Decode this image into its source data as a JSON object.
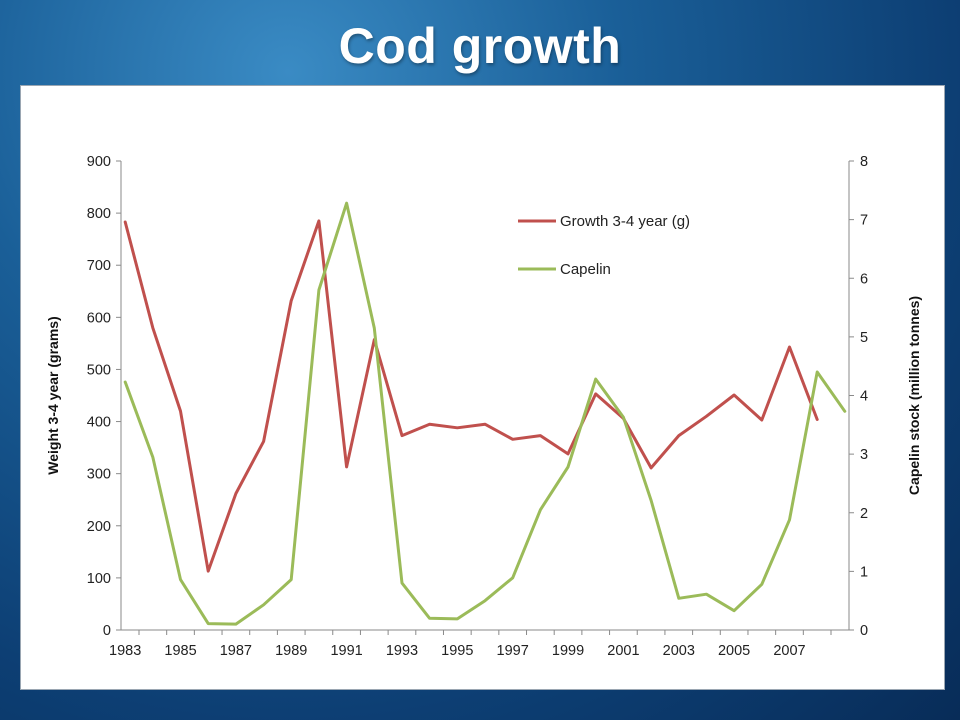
{
  "slide": {
    "title": "Cod growth"
  },
  "chart_data": {
    "type": "line",
    "x": [
      1983,
      1984,
      1985,
      1986,
      1987,
      1988,
      1989,
      1990,
      1991,
      1992,
      1993,
      1994,
      1995,
      1996,
      1997,
      1998,
      1999,
      2000,
      2001,
      2002,
      2003,
      2004,
      2005,
      2006,
      2007,
      2008,
      2009
    ],
    "x_tick_labels": [
      "1983",
      "1985",
      "1987",
      "1989",
      "1991",
      "1993",
      "1995",
      "1997",
      "1999",
      "2001",
      "2003",
      "2005",
      "2007"
    ],
    "ylabel": "Weight 3-4 year (grams)",
    "ylim": [
      0,
      900
    ],
    "y_ticks": [
      "0",
      "100",
      "200",
      "300",
      "400",
      "500",
      "600",
      "700",
      "800",
      "900"
    ],
    "y2label": "Capelin stock (million tonnes)",
    "y2lim": [
      0,
      8
    ],
    "y2_ticks": [
      "0",
      "1",
      "2",
      "3",
      "4",
      "5",
      "6",
      "7",
      "8"
    ],
    "grid": false,
    "legend_position": "top-right",
    "series": [
      {
        "name": "Growth 3-4 year (g)",
        "axis": "left",
        "color": "#c0504d",
        "values": [
          783,
          580,
          420,
          113,
          262,
          362,
          632,
          785,
          313,
          557,
          373,
          395,
          388,
          395,
          366,
          373,
          338,
          453,
          406,
          311,
          373,
          410,
          451,
          403,
          543,
          404,
          null
        ]
      },
      {
        "name": "Capelin",
        "axis": "right",
        "color": "#9bbb59",
        "values": [
          4.23,
          2.95,
          0.86,
          0.11,
          0.1,
          0.43,
          0.86,
          5.8,
          7.28,
          5.15,
          0.8,
          0.2,
          0.19,
          0.5,
          0.89,
          2.05,
          2.78,
          4.28,
          3.63,
          2.21,
          0.54,
          0.61,
          0.33,
          0.78,
          1.88,
          4.4,
          3.73
        ]
      }
    ]
  }
}
